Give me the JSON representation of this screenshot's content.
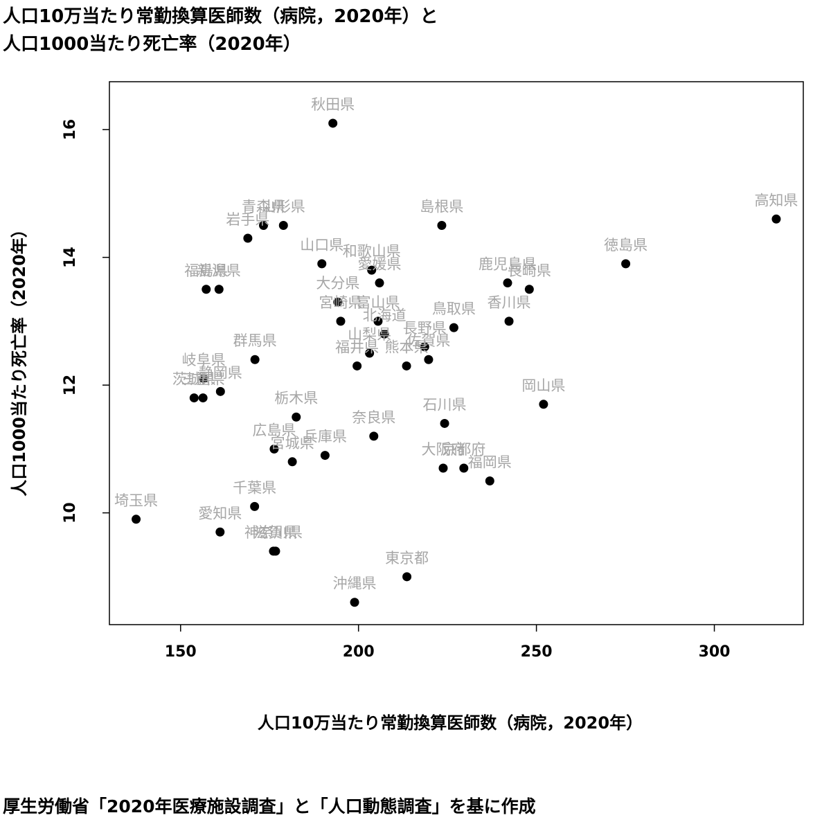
{
  "title": [
    "人口10万当たり常勤換算医師数（病院，2020年）と",
    "人口1000当たり死亡率（2020年）"
  ],
  "source": "厚生労働省「2020年医療施設調査」と「人口動態調査」を基に作成",
  "chart_data": {
    "type": "scatter",
    "xlabel": "人口10万当たり常勤換算医師数（病院，2020年）",
    "ylabel": "人口1000当たり死亡率（2020年）",
    "xlim": [
      130,
      325
    ],
    "ylim": [
      8.25,
      16.75
    ],
    "xticks": [
      150,
      200,
      250,
      300
    ],
    "yticks": [
      10,
      12,
      14,
      16
    ],
    "grid": false,
    "points": [
      {
        "label": "北海道",
        "x": 207.3,
        "y": 12.8
      },
      {
        "label": "青森県",
        "x": 173.3,
        "y": 14.5
      },
      {
        "label": "岩手県",
        "x": 168.9,
        "y": 14.3
      },
      {
        "label": "宮城県",
        "x": 181.4,
        "y": 10.8
      },
      {
        "label": "秋田県",
        "x": 192.8,
        "y": 16.1
      },
      {
        "label": "山形県",
        "x": 178.9,
        "y": 14.5
      },
      {
        "label": "福島県",
        "x": 157.2,
        "y": 13.5
      },
      {
        "label": "茨城県",
        "x": 153.8,
        "y": 11.8
      },
      {
        "label": "栃木県",
        "x": 182.5,
        "y": 11.5
      },
      {
        "label": "群馬県",
        "x": 170.9,
        "y": 12.4
      },
      {
        "label": "埼玉県",
        "x": 137.5,
        "y": 9.9
      },
      {
        "label": "千葉県",
        "x": 170.8,
        "y": 10.1
      },
      {
        "label": "東京都",
        "x": 213.6,
        "y": 9.0
      },
      {
        "label": "神奈川県",
        "x": 176.1,
        "y": 9.4
      },
      {
        "label": "新潟県",
        "x": 160.8,
        "y": 13.5
      },
      {
        "label": "富山県",
        "x": 205.5,
        "y": 13.0
      },
      {
        "label": "石川県",
        "x": 224.2,
        "y": 11.4
      },
      {
        "label": "福井県",
        "x": 199.6,
        "y": 12.3
      },
      {
        "label": "山梨県",
        "x": 203.1,
        "y": 12.5
      },
      {
        "label": "長野県",
        "x": 218.6,
        "y": 12.6
      },
      {
        "label": "岐阜県",
        "x": 156.5,
        "y": 12.1
      },
      {
        "label": "静岡県",
        "x": 161.2,
        "y": 11.9
      },
      {
        "label": "愛知県",
        "x": 161.1,
        "y": 9.7
      },
      {
        "label": "三重県",
        "x": 156.3,
        "y": 11.8
      },
      {
        "label": "滋賀県",
        "x": 176.7,
        "y": 9.4
      },
      {
        "label": "京都府",
        "x": 229.6,
        "y": 10.7
      },
      {
        "label": "大阪府",
        "x": 223.8,
        "y": 10.7
      },
      {
        "label": "兵庫県",
        "x": 190.6,
        "y": 10.9
      },
      {
        "label": "奈良県",
        "x": 204.3,
        "y": 11.2
      },
      {
        "label": "和歌山県",
        "x": 203.7,
        "y": 13.8
      },
      {
        "label": "鳥取県",
        "x": 226.8,
        "y": 12.9
      },
      {
        "label": "島根県",
        "x": 223.4,
        "y": 14.5
      },
      {
        "label": "岡山県",
        "x": 252.0,
        "y": 11.7
      },
      {
        "label": "広島県",
        "x": 176.3,
        "y": 11.0
      },
      {
        "label": "山口県",
        "x": 189.7,
        "y": 13.9
      },
      {
        "label": "徳島県",
        "x": 275.1,
        "y": 13.9
      },
      {
        "label": "香川県",
        "x": 242.3,
        "y": 13.0
      },
      {
        "label": "愛媛県",
        "x": 205.9,
        "y": 13.6
      },
      {
        "label": "高知県",
        "x": 317.4,
        "y": 14.6
      },
      {
        "label": "福岡県",
        "x": 236.9,
        "y": 10.5
      },
      {
        "label": "佐賀県",
        "x": 219.7,
        "y": 12.4
      },
      {
        "label": "長崎県",
        "x": 248.0,
        "y": 13.5
      },
      {
        "label": "熊本県",
        "x": 213.5,
        "y": 12.3
      },
      {
        "label": "大分県",
        "x": 194.2,
        "y": 13.3
      },
      {
        "label": "宮崎県",
        "x": 195.0,
        "y": 13.0
      },
      {
        "label": "鹿児島県",
        "x": 241.9,
        "y": 13.6
      },
      {
        "label": "沖縄県",
        "x": 198.9,
        "y": 8.6
      }
    ]
  }
}
